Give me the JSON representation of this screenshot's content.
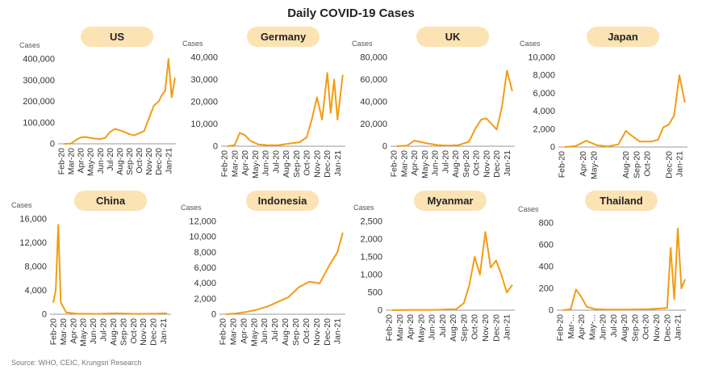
{
  "title": "Daily COVID-19 Cases",
  "source": "Source: WHO, CEIC, Krungsri Research",
  "colors": {
    "line": "#F39C12",
    "pill": "#FCE3B4",
    "axis": "#999999"
  },
  "chart_data": [
    {
      "type": "line",
      "title": "US",
      "ylabel": "Cases",
      "ylim": [
        0,
        400000
      ],
      "yticks": [
        "0",
        "100,000",
        "200,000",
        "300,000",
        "400,000"
      ],
      "xticks": [
        "Feb-20",
        "Mar-20",
        "Apr-20",
        "May-20",
        "Jun-20",
        "Jul-20",
        "Aug-20",
        "Sep-20",
        "Oct-20",
        "Nov-20",
        "Dec-20",
        "Jan-21"
      ],
      "x": [
        "Feb-20",
        "Mar-20",
        "Mar-20",
        "Apr-20",
        "Apr-20",
        "May-20",
        "Jun-20",
        "Jun-20",
        "Jul-20",
        "Jul-20",
        "Aug-20",
        "Sep-20",
        "Sep-20",
        "Oct-20",
        "Oct-20",
        "Nov-20",
        "Nov-20",
        "Dec-20",
        "Dec-20",
        "Dec-20",
        "Jan-21",
        "Jan-21",
        "Jan-21"
      ],
      "values": [
        0,
        1000,
        18000,
        30000,
        32000,
        25000,
        22000,
        28000,
        55000,
        70000,
        60000,
        45000,
        40000,
        50000,
        60000,
        120000,
        180000,
        200000,
        230000,
        250000,
        400000,
        220000,
        310000
      ]
    },
    {
      "type": "line",
      "title": "Germany",
      "ylabel": "Cases",
      "ylim": [
        0,
        40000
      ],
      "yticks": [
        "0",
        "10,000",
        "20,000",
        "30,000",
        "40,000"
      ],
      "xticks": [
        "Feb-20",
        "Mar-20",
        "Apr-20",
        "May-20",
        "Jun-20",
        "Jul-20",
        "Aug-20",
        "Sep-20",
        "Oct-20",
        "Nov-20",
        "Dec-20",
        "Jan-21"
      ],
      "x": [
        "Feb-20",
        "Mar-20",
        "Mar-20",
        "Apr-20",
        "Apr-20",
        "May-20",
        "Jun-20",
        "Jul-20",
        "Aug-20",
        "Sep-20",
        "Oct-20",
        "Oct-20",
        "Nov-20",
        "Nov-20",
        "Dec-20",
        "Dec-20",
        "Dec-20",
        "Jan-21",
        "Jan-21"
      ],
      "values": [
        0,
        500,
        6000,
        5000,
        2500,
        800,
        400,
        500,
        1200,
        1800,
        4000,
        12000,
        22000,
        12000,
        33000,
        15000,
        30000,
        12000,
        32000
      ]
    },
    {
      "type": "line",
      "title": "UK",
      "ylabel": "Cases",
      "ylim": [
        0,
        80000
      ],
      "yticks": [
        "0",
        "20,000",
        "40,000",
        "60,000",
        "80,000"
      ],
      "xticks": [
        "Feb-20",
        "Mar-20",
        "Apr-20",
        "May-20",
        "Jun-20",
        "Jul-20",
        "Aug-20",
        "Sep-20",
        "Oct-20",
        "Nov-20",
        "Dec-20",
        "Jan-21"
      ],
      "x": [
        "Feb-20",
        "Mar-20",
        "Apr-20",
        "Apr-20",
        "May-20",
        "Jun-20",
        "Jul-20",
        "Aug-20",
        "Sep-20",
        "Oct-20",
        "Oct-20",
        "Nov-20",
        "Nov-20",
        "Dec-20",
        "Dec-20",
        "Jan-21",
        "Jan-21"
      ],
      "values": [
        0,
        500,
        5000,
        4000,
        2500,
        1000,
        600,
        1000,
        4000,
        17000,
        24000,
        25000,
        20000,
        15000,
        35000,
        68000,
        50000
      ]
    },
    {
      "type": "line",
      "title": "Japan",
      "ylabel": "Cases",
      "ylim": [
        0,
        10000
      ],
      "yticks": [
        "0",
        "2,000",
        "4,000",
        "6,000",
        "8,000",
        "10,000"
      ],
      "xticks": [
        "Feb-20",
        "Apr-20",
        "May-20",
        "Aug-20",
        "Sep-20",
        "Oct-20",
        "Dec-20",
        "Jan-21"
      ],
      "x": [
        "Feb-20",
        "Mar-20",
        "Apr-20",
        "May-20",
        "Jun-20",
        "Jul-20",
        "Aug-20",
        "Aug-20",
        "Sep-20",
        "Oct-20",
        "Nov-20",
        "Nov-20",
        "Dec-20",
        "Dec-20",
        "Jan-21",
        "Jan-21"
      ],
      "values": [
        0,
        100,
        700,
        200,
        50,
        300,
        1800,
        1300,
        600,
        600,
        800,
        2200,
        2500,
        3500,
        8000,
        5000
      ]
    },
    {
      "type": "line",
      "title": "China",
      "ylabel": "Cases",
      "ylim": [
        0,
        16000
      ],
      "yticks": [
        "0",
        "4,000",
        "8,000",
        "12,000",
        "16,000"
      ],
      "xticks": [
        "Feb-20",
        "Mar-20",
        "Apr-20",
        "May-20",
        "Jun-20",
        "Jul-20",
        "Aug-20",
        "Sep-20",
        "Oct-20",
        "Nov-20",
        "Dec-20",
        "Jan-21"
      ],
      "x": [
        "Feb-20",
        "Feb-20",
        "Feb-20",
        "Feb-20",
        "Mar-20",
        "Apr-20",
        "Jun-20",
        "Aug-20",
        "Oct-20",
        "Dec-20",
        "Jan-21"
      ],
      "values": [
        2000,
        4000,
        15000,
        2000,
        300,
        100,
        50,
        150,
        50,
        100,
        150
      ]
    },
    {
      "type": "line",
      "title": "Indonesia",
      "ylabel": "Cases",
      "ylim": [
        0,
        12000
      ],
      "yticks": [
        "0",
        "2,000",
        "4,000",
        "6,000",
        "8,000",
        "10,000",
        "12,000"
      ],
      "xticks": [
        "Feb-20",
        "Mar-20",
        "Apr-20",
        "May-20",
        "Jun-20",
        "Jul-20",
        "Aug-20",
        "Sep-20",
        "Oct-20",
        "Nov-20",
        "Dec-20",
        "Jan-21"
      ],
      "x": [
        "Feb-20",
        "Mar-20",
        "Apr-20",
        "May-20",
        "Jun-20",
        "Jul-20",
        "Aug-20",
        "Sep-20",
        "Oct-20",
        "Nov-20",
        "Dec-20",
        "Jan-21",
        "Jan-21"
      ],
      "values": [
        0,
        100,
        300,
        600,
        1000,
        1600,
        2200,
        3500,
        4200,
        4000,
        6500,
        8000,
        10500
      ]
    },
    {
      "type": "line",
      "title": "Myanmar",
      "ylabel": "Cases",
      "ylim": [
        0,
        2500
      ],
      "yticks": [
        "0",
        "500",
        "1,000",
        "1,500",
        "2,000",
        "2,500"
      ],
      "xticks": [
        "Feb-20",
        "Mar-20",
        "Apr-20",
        "May-20",
        "Jun-20",
        "Jul-20",
        "Aug-20",
        "Sep-20",
        "Oct-20",
        "Nov-20",
        "Dec-20",
        "Jan-21"
      ],
      "x": [
        "Feb-20",
        "Mar-20",
        "Apr-20",
        "May-20",
        "Jun-20",
        "Jul-20",
        "Aug-20",
        "Sep-20",
        "Sep-20",
        "Oct-20",
        "Oct-20",
        "Nov-20",
        "Nov-20",
        "Dec-20",
        "Dec-20",
        "Jan-21",
        "Jan-21"
      ],
      "values": [
        0,
        5,
        10,
        10,
        10,
        20,
        30,
        200,
        700,
        1500,
        1000,
        2200,
        1200,
        1400,
        1000,
        500,
        700
      ]
    },
    {
      "type": "line",
      "title": "Thailand",
      "ylabel": "Cases",
      "ylim": [
        0,
        800
      ],
      "yticks": [
        "0",
        "200",
        "400",
        "600",
        "800"
      ],
      "xticks": [
        "Feb-20",
        "Mar-...",
        "Apr-20",
        "May-...",
        "Jun-20",
        "Jul-20",
        "Aug-20",
        "Sep-20",
        "Oct-20",
        "Nov-20",
        "Dec-20",
        "Jan-21"
      ],
      "x": [
        "Feb-20",
        "Mar-20",
        "Mar-20",
        "Apr-20",
        "Apr-20",
        "May-20",
        "Jun-20",
        "Aug-20",
        "Oct-20",
        "Dec-20",
        "Dec-20",
        "Dec-20",
        "Jan-21",
        "Jan-21",
        "Jan-21"
      ],
      "values": [
        0,
        10,
        190,
        120,
        30,
        10,
        5,
        5,
        10,
        20,
        570,
        100,
        750,
        200,
        280
      ]
    }
  ]
}
